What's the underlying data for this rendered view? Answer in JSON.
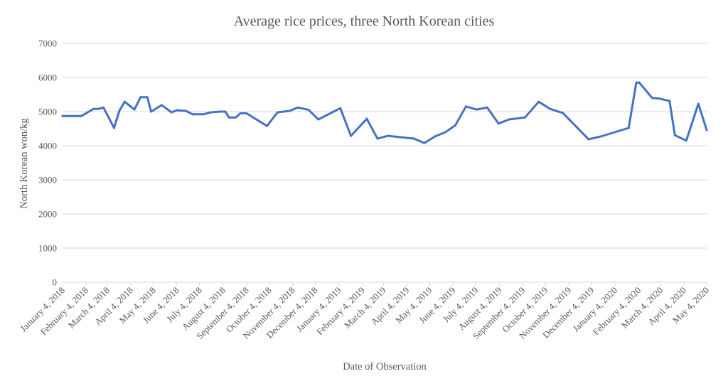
{
  "chart_data": {
    "type": "line",
    "title": "Average rice prices, three North Korean cities",
    "xlabel": "Date of Observation",
    "ylabel": "North Korean won/kg",
    "ylim": [
      0,
      7000
    ],
    "yticks": [
      0,
      1000,
      2000,
      3000,
      4000,
      5000,
      6000,
      7000
    ],
    "xlim": [
      "2018-01-04",
      "2020-05-04"
    ],
    "xtick_labels": [
      {
        "date": "2018-01-04",
        "label": "January 4, 2018"
      },
      {
        "date": "2018-02-04",
        "label": "February 4, 2018"
      },
      {
        "date": "2018-03-04",
        "label": "March 4, 2018"
      },
      {
        "date": "2018-04-04",
        "label": "April 4, 2018"
      },
      {
        "date": "2018-05-04",
        "label": "May 4, 2018"
      },
      {
        "date": "2018-06-04",
        "label": "June 4, 2018"
      },
      {
        "date": "2018-07-04",
        "label": "July 4, 2018"
      },
      {
        "date": "2018-08-04",
        "label": "August 4, 2018"
      },
      {
        "date": "2018-09-04",
        "label": "September 4, 2018"
      },
      {
        "date": "2018-10-04",
        "label": "October 4, 2018"
      },
      {
        "date": "2018-11-04",
        "label": "November 4, 2018"
      },
      {
        "date": "2018-12-04",
        "label": "December 4, 2018"
      },
      {
        "date": "2019-01-04",
        "label": "January 4, 2019"
      },
      {
        "date": "2019-02-04",
        "label": "February 4, 2019"
      },
      {
        "date": "2019-03-04",
        "label": "March 4, 2019"
      },
      {
        "date": "2019-04-04",
        "label": "April 4, 2019"
      },
      {
        "date": "2019-05-04",
        "label": "May 4, 2019"
      },
      {
        "date": "2019-06-04",
        "label": "June 4, 2019"
      },
      {
        "date": "2019-07-04",
        "label": "July 4, 2019"
      },
      {
        "date": "2019-08-04",
        "label": "August 4, 2019"
      },
      {
        "date": "2019-09-04",
        "label": "September 4, 2019"
      },
      {
        "date": "2019-10-04",
        "label": "October 4, 2019"
      },
      {
        "date": "2019-11-04",
        "label": "November 4, 2019"
      },
      {
        "date": "2019-12-04",
        "label": "December 4, 2019"
      },
      {
        "date": "2020-01-04",
        "label": "January 4, 2020"
      },
      {
        "date": "2020-02-04",
        "label": "February 4, 2020"
      },
      {
        "date": "2020-03-04",
        "label": "March 4, 2020"
      },
      {
        "date": "2020-04-04",
        "label": "April 4, 2020"
      },
      {
        "date": "2020-05-04",
        "label": "May 4, 2020"
      }
    ],
    "grid": true,
    "legend": "none",
    "series": [
      {
        "color": "#4472c4",
        "x": [
          "2018-01-04",
          "2018-01-29",
          "2018-02-14",
          "2018-02-21",
          "2018-02-27",
          "2018-03-13",
          "2018-03-20",
          "2018-03-27",
          "2018-04-09",
          "2018-04-17",
          "2018-04-26",
          "2018-05-01",
          "2018-05-15",
          "2018-05-28",
          "2018-06-04",
          "2018-06-16",
          "2018-06-25",
          "2018-07-09",
          "2018-07-19",
          "2018-07-31",
          "2018-08-07",
          "2018-08-12",
          "2018-08-21",
          "2018-08-27",
          "2018-09-04",
          "2018-10-01",
          "2018-10-15",
          "2018-10-31",
          "2018-11-11",
          "2018-11-25",
          "2018-12-08",
          "2019-01-06",
          "2019-01-20",
          "2019-02-10",
          "2019-02-24",
          "2019-03-10",
          "2019-03-27",
          "2019-04-13",
          "2019-04-27",
          "2019-05-11",
          "2019-05-25",
          "2019-06-07",
          "2019-06-21",
          "2019-07-05",
          "2019-07-19",
          "2019-08-03",
          "2019-08-17",
          "2019-09-07",
          "2019-09-25",
          "2019-10-10",
          "2019-10-27",
          "2019-11-30",
          "2019-12-16",
          "2020-01-22",
          "2020-02-01",
          "2020-02-05",
          "2020-02-22",
          "2020-03-03",
          "2020-03-16",
          "2020-03-23",
          "2020-04-07",
          "2020-04-23",
          "2020-05-04"
        ],
        "y": [
          4870,
          4870,
          5080,
          5080,
          5120,
          4520,
          5020,
          5290,
          5060,
          5420,
          5420,
          5000,
          5190,
          4980,
          5040,
          5020,
          4920,
          4920,
          4980,
          5000,
          5000,
          4830,
          4830,
          4950,
          4950,
          4580,
          4980,
          5020,
          5120,
          5050,
          4770,
          5100,
          4290,
          4790,
          4210,
          4290,
          4250,
          4210,
          4080,
          4270,
          4400,
          4600,
          5150,
          5060,
          5120,
          4650,
          4770,
          4830,
          5290,
          5080,
          4960,
          4190,
          4270,
          4520,
          5850,
          5850,
          5400,
          5380,
          5310,
          4310,
          4150,
          5230,
          4460
        ]
      }
    ]
  }
}
